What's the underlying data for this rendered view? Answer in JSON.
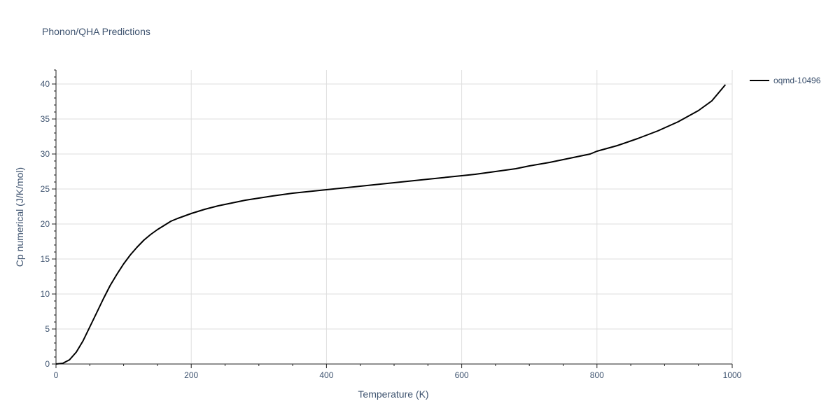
{
  "chart_data": {
    "type": "line",
    "title": "Phonon/QHA Predictions",
    "xlabel": "Temperature (K)",
    "ylabel": "Cp numerical (J/K/mol)",
    "xlim": [
      0,
      1000
    ],
    "ylim": [
      0,
      42
    ],
    "x_ticks": [
      0,
      200,
      400,
      600,
      800,
      1000
    ],
    "y_ticks": [
      0,
      5,
      10,
      15,
      20,
      25,
      30,
      35,
      40
    ],
    "grid": true,
    "legend_position": "top-right",
    "colors": {
      "series": "#000000",
      "text": "#3f5470",
      "grid": "#dedede"
    },
    "series": [
      {
        "name": "oqmd-10496",
        "x": [
          0,
          10,
          20,
          30,
          40,
          50,
          60,
          70,
          80,
          90,
          100,
          110,
          120,
          130,
          140,
          150,
          160,
          170,
          180,
          200,
          220,
          240,
          260,
          280,
          300,
          320,
          350,
          400,
          450,
          500,
          550,
          600,
          620,
          650,
          680,
          700,
          730,
          760,
          790,
          800,
          830,
          860,
          890,
          920,
          950,
          970,
          990
        ],
        "y": [
          0,
          0.1,
          0.6,
          1.7,
          3.3,
          5.3,
          7.3,
          9.3,
          11.2,
          12.8,
          14.3,
          15.6,
          16.7,
          17.7,
          18.5,
          19.2,
          19.8,
          20.4,
          20.8,
          21.5,
          22.1,
          22.6,
          23.0,
          23.4,
          23.7,
          24.0,
          24.4,
          24.9,
          25.4,
          25.9,
          26.4,
          26.9,
          27.1,
          27.5,
          27.9,
          28.3,
          28.8,
          29.4,
          30.0,
          30.4,
          31.2,
          32.2,
          33.3,
          34.6,
          36.2,
          37.6,
          39.9
        ]
      }
    ]
  }
}
